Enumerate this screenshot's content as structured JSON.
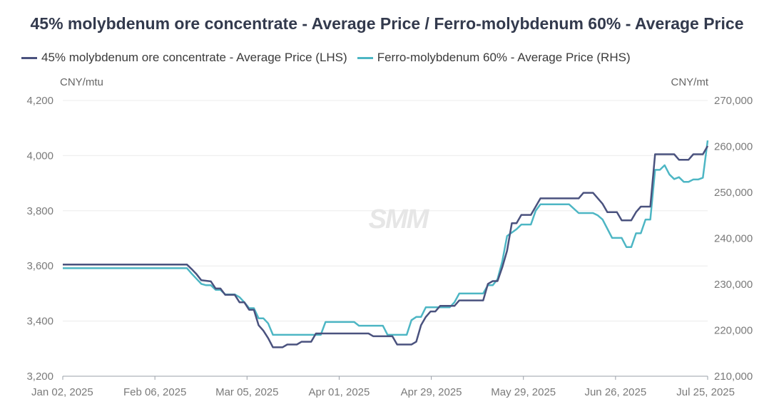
{
  "chart_data": {
    "type": "line",
    "title": "45% molybdenum ore concentrate - Average Price / Ferro-molybdenum 60% - Average Price",
    "left_unit": "CNY/mtu",
    "right_unit": "CNY/mt",
    "watermark": "SMM",
    "x_tick_labels": [
      "Jan 02, 2025",
      "Feb 06, 2025",
      "Mar 05, 2025",
      "Apr 01, 2025",
      "Apr 29, 2025",
      "May 29, 2025",
      "Jun 26, 2025",
      "Jul 25, 2025"
    ],
    "left_axis": {
      "ticks": [
        "3,200",
        "3,400",
        "3,600",
        "3,800",
        "4,000",
        "4,200"
      ],
      "range": [
        3200,
        4200
      ]
    },
    "right_axis": {
      "ticks": [
        "210,000",
        "220,000",
        "230,000",
        "240,000",
        "250,000",
        "260,000",
        "270,000"
      ],
      "range": [
        210000,
        270000
      ]
    },
    "grid": "horizontal",
    "legend_position": "top-left",
    "series": [
      {
        "name": "45% molybdenum ore concentrate - Average Price (LHS)",
        "axis": "left",
        "color": "#4a527e",
        "points": [
          [
            0,
            3605
          ],
          [
            17,
            3605
          ],
          [
            26,
            3605
          ],
          [
            27,
            3588
          ],
          [
            28,
            3570
          ],
          [
            29,
            3548
          ],
          [
            31,
            3544
          ],
          [
            32,
            3518
          ],
          [
            33,
            3518
          ],
          [
            34,
            3495
          ],
          [
            36,
            3495
          ],
          [
            37,
            3468
          ],
          [
            38,
            3468
          ],
          [
            39,
            3441
          ],
          [
            40,
            3441
          ],
          [
            41,
            3385
          ],
          [
            42,
            3365
          ],
          [
            43,
            3338
          ],
          [
            44,
            3305
          ],
          [
            46,
            3305
          ],
          [
            47,
            3315
          ],
          [
            49,
            3315
          ],
          [
            50,
            3325
          ],
          [
            52,
            3325
          ],
          [
            53,
            3355
          ],
          [
            64,
            3355
          ],
          [
            65,
            3345
          ],
          [
            69,
            3345
          ],
          [
            70,
            3315
          ],
          [
            73,
            3315
          ],
          [
            74,
            3325
          ],
          [
            75,
            3385
          ],
          [
            76,
            3415
          ],
          [
            77,
            3435
          ],
          [
            78,
            3435
          ],
          [
            79,
            3455
          ],
          [
            82,
            3455
          ],
          [
            83,
            3475
          ],
          [
            88,
            3475
          ],
          [
            89,
            3535
          ],
          [
            90,
            3545
          ],
          [
            91,
            3545
          ],
          [
            92,
            3595
          ],
          [
            93,
            3655
          ],
          [
            94,
            3755
          ],
          [
            95,
            3755
          ],
          [
            96,
            3785
          ],
          [
            98,
            3785
          ],
          [
            99,
            3815
          ],
          [
            100,
            3845
          ],
          [
            108,
            3845
          ],
          [
            109,
            3865
          ],
          [
            111,
            3865
          ],
          [
            113,
            3825
          ],
          [
            114,
            3795
          ],
          [
            116,
            3795
          ],
          [
            117,
            3765
          ],
          [
            119,
            3765
          ],
          [
            120,
            3795
          ],
          [
            121,
            3815
          ],
          [
            123,
            3815
          ],
          [
            124,
            4005
          ],
          [
            128,
            4005
          ],
          [
            129,
            3985
          ],
          [
            131,
            3985
          ],
          [
            132,
            4005
          ],
          [
            134,
            4005
          ],
          [
            135,
            4035
          ]
        ]
      },
      {
        "name": "Ferro-molybdenum 60% - Average Price (RHS)",
        "axis": "right",
        "color": "#4db6c4",
        "points": [
          [
            0,
            233500
          ],
          [
            17,
            233500
          ],
          [
            26,
            233500
          ],
          [
            27,
            232300
          ],
          [
            28,
            231200
          ],
          [
            29,
            230100
          ],
          [
            30,
            229800
          ],
          [
            31,
            229800
          ],
          [
            32,
            228800
          ],
          [
            33,
            228800
          ],
          [
            34,
            227800
          ],
          [
            36,
            227800
          ],
          [
            37,
            227200
          ],
          [
            38,
            226100
          ],
          [
            39,
            224800
          ],
          [
            40,
            224800
          ],
          [
            41,
            222600
          ],
          [
            42,
            222600
          ],
          [
            43,
            221500
          ],
          [
            44,
            219000
          ],
          [
            52,
            219000
          ],
          [
            53,
            219000
          ],
          [
            54,
            219000
          ],
          [
            55,
            221800
          ],
          [
            61,
            221800
          ],
          [
            62,
            221000
          ],
          [
            67,
            221000
          ],
          [
            68,
            219000
          ],
          [
            72,
            219000
          ],
          [
            73,
            222200
          ],
          [
            74,
            222900
          ],
          [
            75,
            222900
          ],
          [
            76,
            225000
          ],
          [
            78,
            225000
          ],
          [
            79,
            225000
          ],
          [
            81,
            225000
          ],
          [
            82,
            226100
          ],
          [
            83,
            228000
          ],
          [
            88,
            228000
          ],
          [
            89,
            229800
          ],
          [
            90,
            229800
          ],
          [
            91,
            231100
          ],
          [
            92,
            235000
          ],
          [
            93,
            240500
          ],
          [
            95,
            242000
          ],
          [
            96,
            243000
          ],
          [
            98,
            243000
          ],
          [
            99,
            246000
          ],
          [
            100,
            247400
          ],
          [
            106,
            247400
          ],
          [
            108,
            245500
          ],
          [
            111,
            245500
          ],
          [
            112,
            245000
          ],
          [
            113,
            244100
          ],
          [
            114,
            242100
          ],
          [
            115,
            240100
          ],
          [
            117,
            240100
          ],
          [
            118,
            238100
          ],
          [
            119,
            238100
          ],
          [
            120,
            241100
          ],
          [
            121,
            241100
          ],
          [
            122,
            244100
          ],
          [
            123,
            244100
          ],
          [
            124,
            254900
          ],
          [
            125,
            254900
          ],
          [
            126,
            255900
          ],
          [
            127,
            253900
          ],
          [
            128,
            252900
          ],
          [
            129,
            253300
          ],
          [
            130,
            252300
          ],
          [
            131,
            252300
          ],
          [
            132,
            252800
          ],
          [
            133,
            252800
          ],
          [
            134,
            253200
          ],
          [
            135,
            261300
          ]
        ]
      }
    ]
  }
}
